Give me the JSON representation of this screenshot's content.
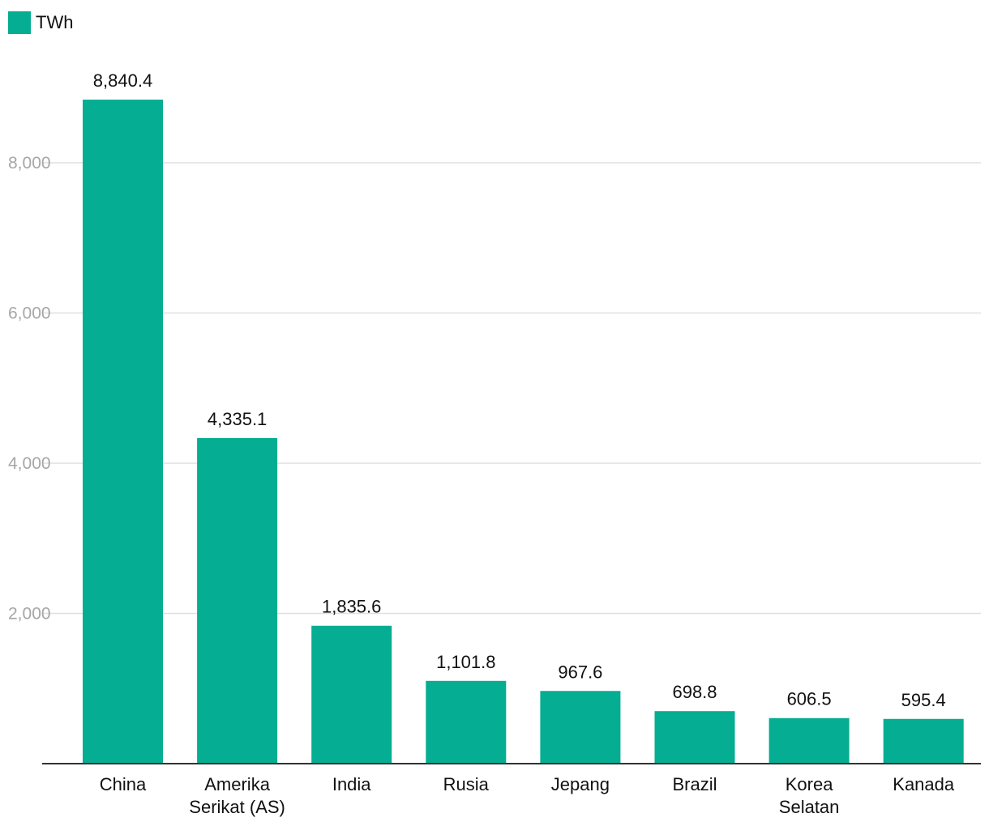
{
  "legend": {
    "label": "TWh"
  },
  "colors": {
    "bar": "#05ad92",
    "grid": "#e0e0e0",
    "axis": "#333333"
  },
  "chart_data": {
    "type": "bar",
    "categories": [
      "China",
      "Amerika Serikat (AS)",
      "India",
      "Rusia",
      "Jepang",
      "Brazil",
      "Korea Selatan",
      "Kanada"
    ],
    "category_lines": [
      [
        "China"
      ],
      [
        "Amerika",
        "Serikat (AS)"
      ],
      [
        "India"
      ],
      [
        "Rusia"
      ],
      [
        "Jepang"
      ],
      [
        "Brazil"
      ],
      [
        "Korea",
        "Selatan"
      ],
      [
        "Kanada"
      ]
    ],
    "series": [
      {
        "name": "TWh",
        "values": [
          8840.4,
          4335.1,
          1835.6,
          1101.8,
          967.6,
          698.8,
          606.5,
          595.4
        ]
      }
    ],
    "value_labels": [
      "8,840.4",
      "4,335.1",
      "1,835.6",
      "1,101.8",
      "967.6",
      "698.8",
      "606.5",
      "595.4"
    ],
    "yticks": [
      2000,
      4000,
      6000,
      8000
    ],
    "ytick_labels": [
      "2,000",
      "4,000",
      "6,000",
      "8,000"
    ],
    "ylim": [
      0,
      9500
    ],
    "grid": true,
    "legend_position": "top-left",
    "title": "",
    "xlabel": "",
    "ylabel": ""
  }
}
